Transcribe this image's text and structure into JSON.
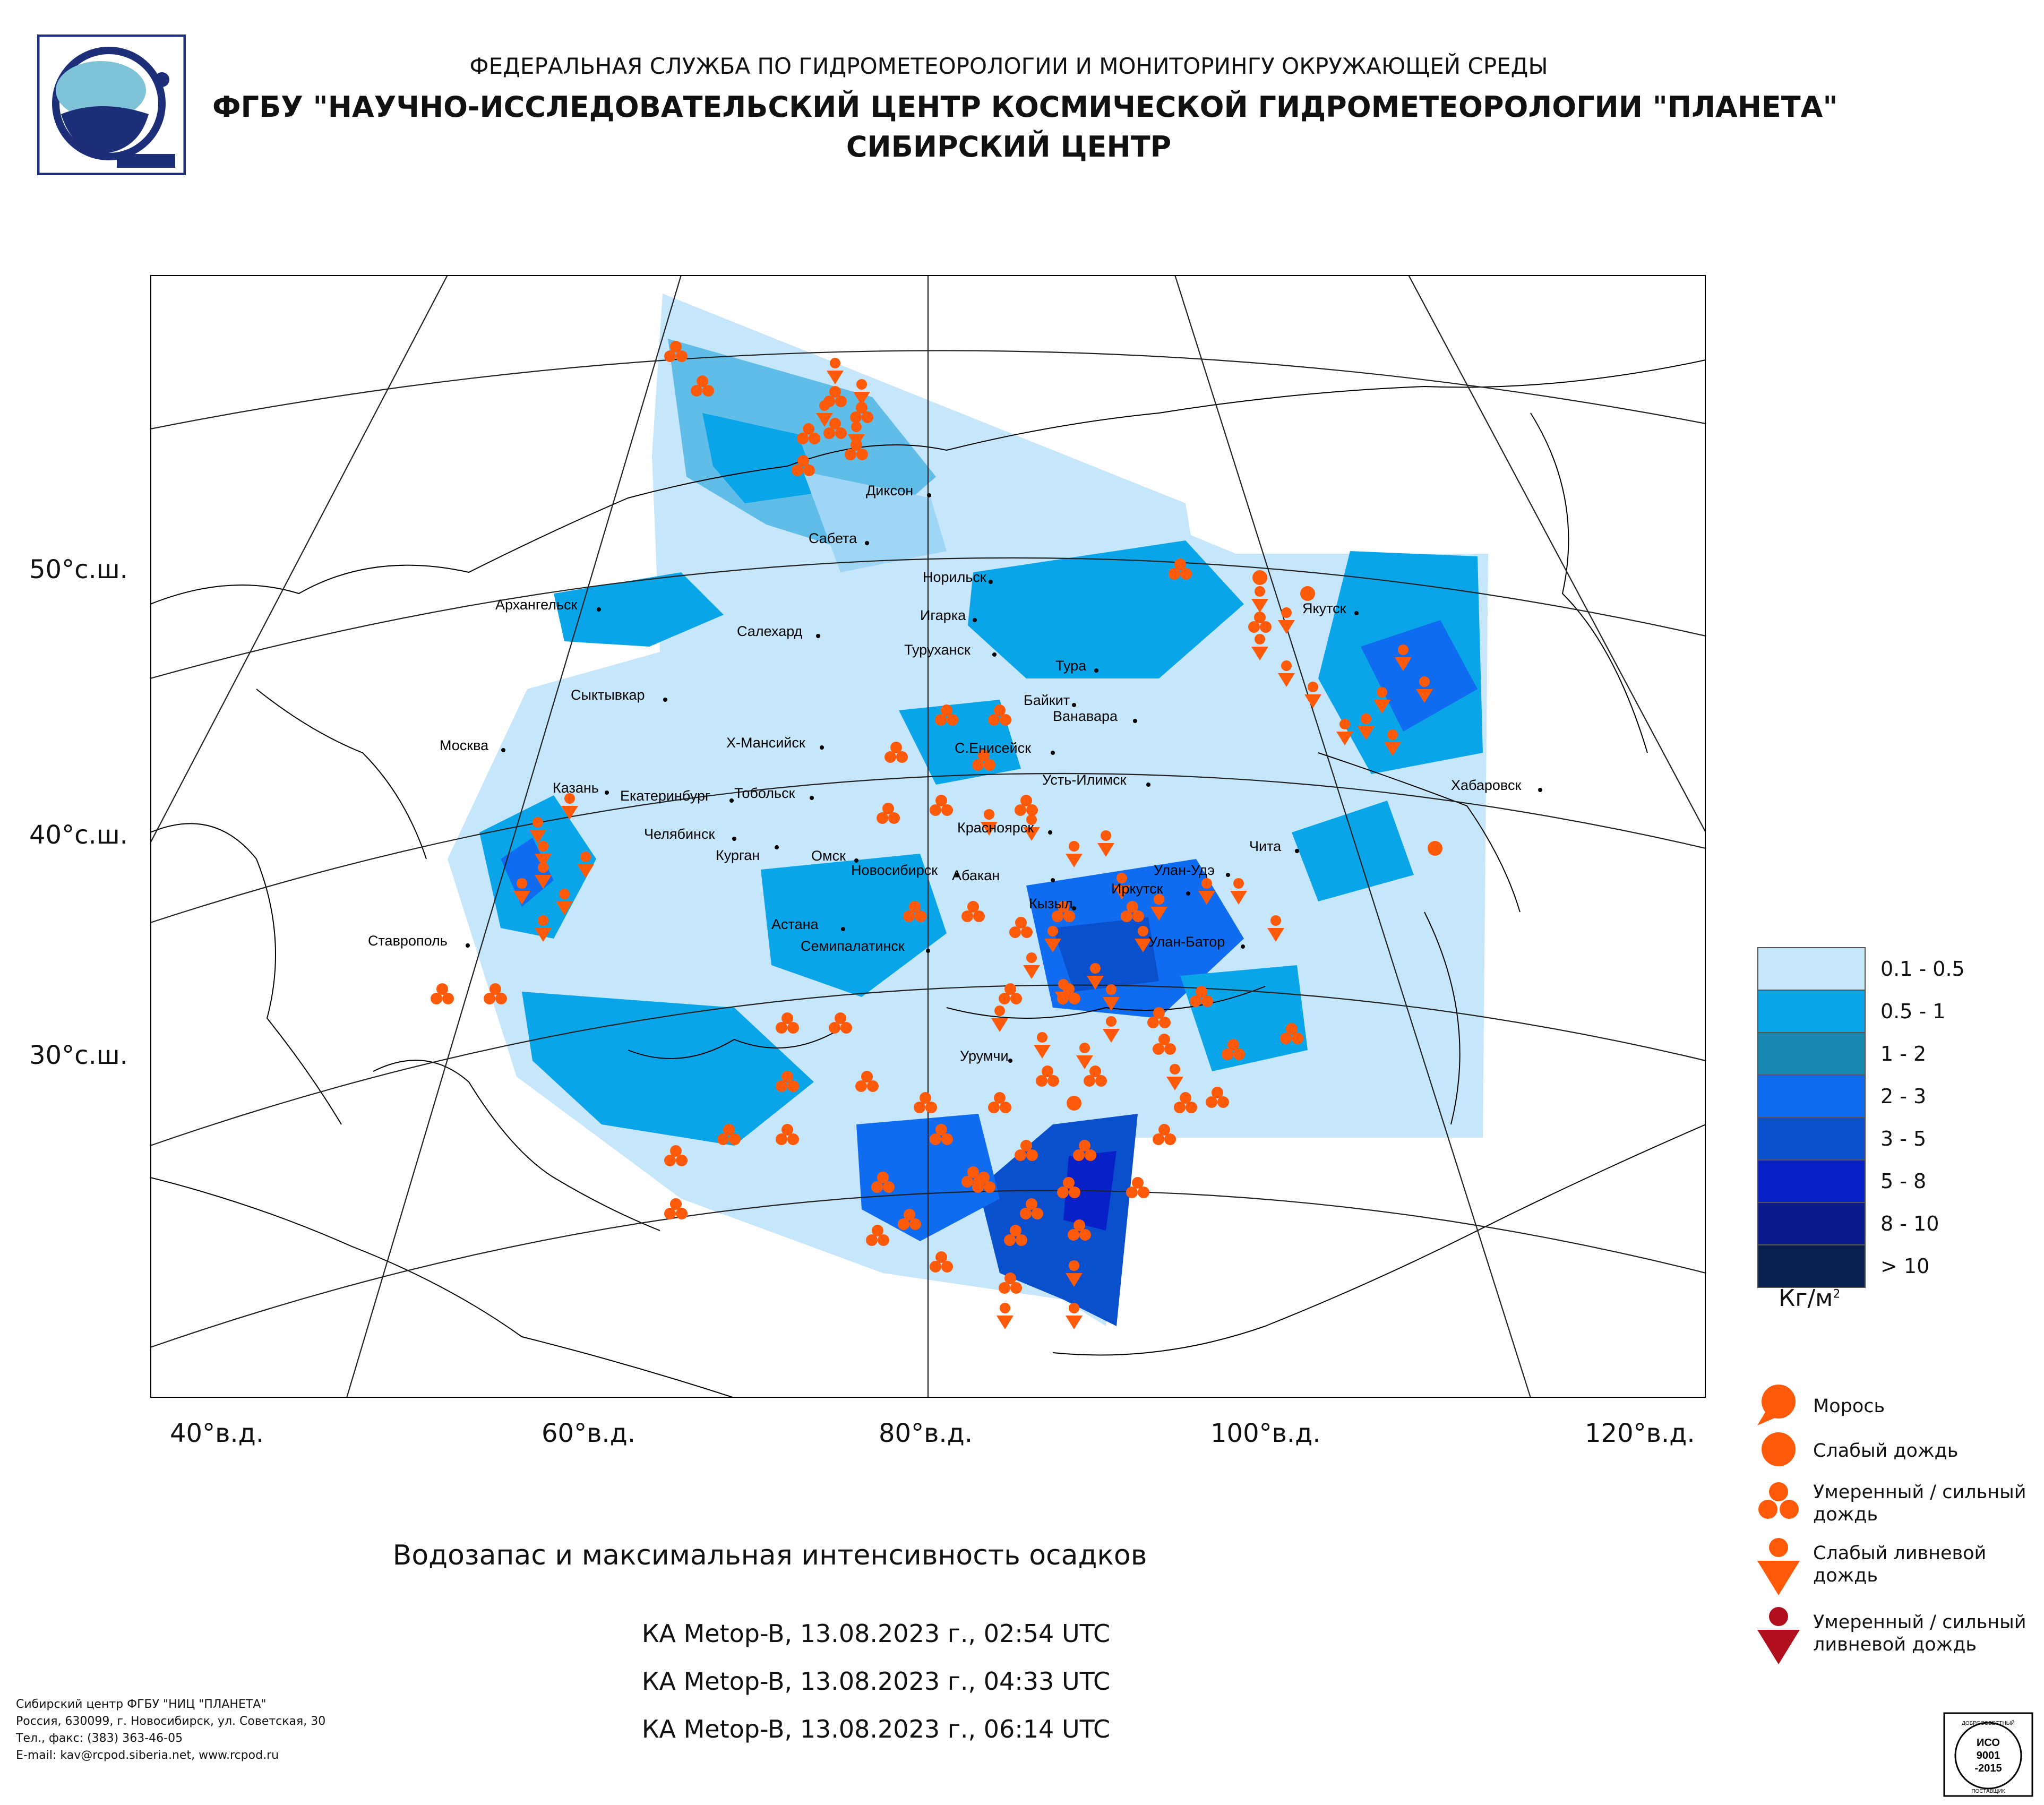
{
  "header": {
    "line1": "ФЕДЕРАЛЬНАЯ СЛУЖБА ПО ГИДРОМЕТЕОРОЛОГИИ И МОНИТОРИНГУ ОКРУЖАЮЩЕЙ СРЕДЫ",
    "line2": "ФГБУ \"НАУЧНО-ИССЛЕДОВАТЕЛЬСКИЙ ЦЕНТР КОСМИЧЕСКОЙ ГИДРОМЕТЕОРОЛОГИИ \"ПЛАНЕТА\"",
    "line3": "СИБИРСКИЙ ЦЕНТР"
  },
  "map": {
    "longitude_labels": [
      "40°в.д.",
      "60°в.д.",
      "80°в.д.",
      "100°в.д.",
      "120°в.д."
    ],
    "latitude_labels": [
      "50°с.ш.",
      "40°с.ш.",
      "30°с.ш."
    ],
    "cities": [
      {
        "name": "Диксон"
      },
      {
        "name": "Сабета"
      },
      {
        "name": "Норильск"
      },
      {
        "name": "Игарка"
      },
      {
        "name": "Архангельск"
      },
      {
        "name": "Салехард"
      },
      {
        "name": "Туруханск"
      },
      {
        "name": "Тура"
      },
      {
        "name": "Якутск"
      },
      {
        "name": "Сыктывкар"
      },
      {
        "name": "Байкит"
      },
      {
        "name": "Ванавара"
      },
      {
        "name": "Москва"
      },
      {
        "name": "Х-Мансийск"
      },
      {
        "name": "С.Енисейск"
      },
      {
        "name": "Казань"
      },
      {
        "name": "Екатеринбург"
      },
      {
        "name": "Тобольск"
      },
      {
        "name": "Усть-Илимск"
      },
      {
        "name": "Хабаровск"
      },
      {
        "name": "Челябинск"
      },
      {
        "name": "Красноярск"
      },
      {
        "name": "Курган"
      },
      {
        "name": "Омск"
      },
      {
        "name": "Новосибирск"
      },
      {
        "name": "Чита"
      },
      {
        "name": "Абакан"
      },
      {
        "name": "Улан-Удэ"
      },
      {
        "name": "Иркутск"
      },
      {
        "name": "Кызыл"
      },
      {
        "name": "Астана"
      },
      {
        "name": "Ставрополь"
      },
      {
        "name": "Семипалатинск"
      },
      {
        "name": "Улан-Батор"
      },
      {
        "name": "Урумчи"
      }
    ]
  },
  "legend": {
    "classes": [
      {
        "label": "0.1 - 0.5",
        "color": "#c6e6fb"
      },
      {
        "label": "0.5 - 1",
        "color": "#0aa5e8"
      },
      {
        "label": "1 - 2",
        "color": "#1789b0"
      },
      {
        "label": "2 - 3",
        "color": "#0f6bf0"
      },
      {
        "label": "3 - 5",
        "color": "#0a4fcc"
      },
      {
        "label": "5 - 8",
        "color": "#0820c8"
      },
      {
        "label": "8 - 10",
        "color": "#0a1a8c"
      },
      {
        "label": "> 10",
        "color": "#0a2050"
      }
    ],
    "unit": "Кг/м",
    "unit_sup": "2",
    "precip_types": [
      {
        "label": "Морось",
        "color": "#ff5a0a"
      },
      {
        "label": "Слабый дождь",
        "color": "#ff5a0a"
      },
      {
        "label": "Умеренный / сильный\nдождь",
        "color": "#ff5a0a"
      },
      {
        "label": "Слабый ливневой\nдождь",
        "color": "#ff5a0a"
      },
      {
        "label": "Умеренный / сильный\nливневой дождь",
        "color": "#b0101e"
      }
    ]
  },
  "title": "Водозапас и максимальная интенсивность осадков",
  "satellite_passes": [
    "КА Metop-B, 13.08.2023 г., 02:54 UTC",
    "КА Metop-B, 13.08.2023 г., 04:33 UTC",
    "КА Metop-B, 13.08.2023 г., 06:14 UTC"
  ],
  "footer": {
    "line1": "Сибирский центр ФГБУ \"НИЦ \"ПЛАНЕТА\"",
    "line2": "Россия, 630099, г. Новосибирск, ул. Советская, 30",
    "line3": "Тел., факс: (383) 363-46-05",
    "line4": "E-mail: kav@rcpod.siberia.net, www.rcpod.ru"
  },
  "certificate": {
    "arc": "ДОБРОСОВЕСТНЫЙ",
    "line1": "ИСО",
    "line2": "9001",
    "line3": "-2015",
    "bottom": "ПОСТАВЩИК"
  },
  "colors": {
    "accent": "#1e2f7a",
    "precip": "#ff5a0a",
    "shower_strong": "#b0101e"
  }
}
